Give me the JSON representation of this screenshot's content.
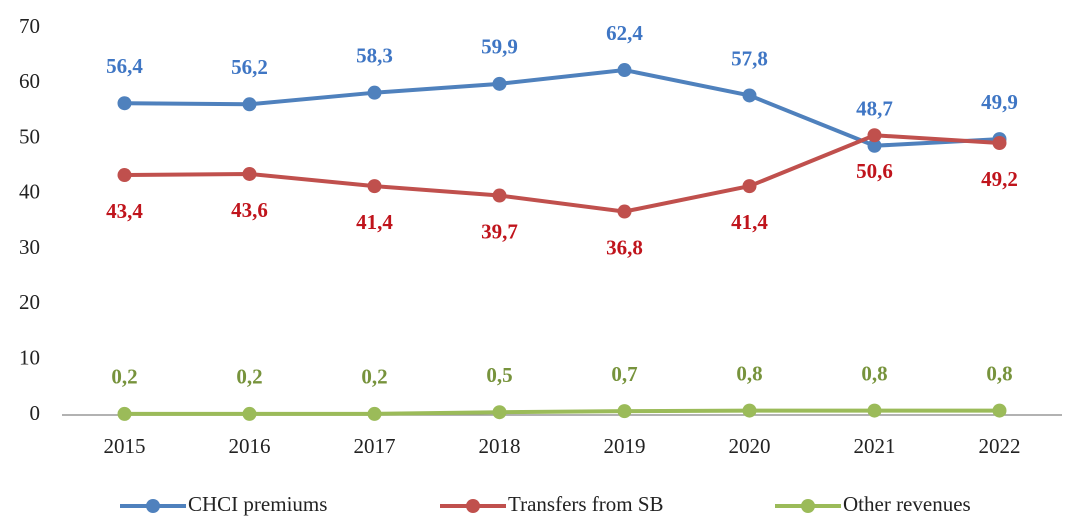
{
  "chart_data": {
    "type": "line",
    "categories": [
      "2015",
      "2016",
      "2017",
      "2018",
      "2019",
      "2020",
      "2021",
      "2022"
    ],
    "series": [
      {
        "name": "CHCI premiums",
        "color": "#4f81bd",
        "label_color": "#3f76c4",
        "values": [
          56.4,
          56.2,
          58.3,
          59.9,
          62.4,
          57.8,
          48.7,
          49.9
        ],
        "value_labels": [
          "56,4",
          "56,2",
          "58,3",
          "59,9",
          "62,4",
          "57,8",
          "48,7",
          "49,9"
        ]
      },
      {
        "name": "Transfers from SB",
        "color": "#c0504d",
        "label_color": "#c0141c",
        "values": [
          43.4,
          43.6,
          41.4,
          39.7,
          36.8,
          41.4,
          50.6,
          49.2
        ],
        "value_labels": [
          "43,4",
          "43,6",
          "41,4",
          "39,7",
          "36,8",
          "41,4",
          "50,6",
          "49,2"
        ]
      },
      {
        "name": "Other revenues",
        "color": "#9bbb59",
        "label_color": "#77933c",
        "values": [
          0.2,
          0.2,
          0.2,
          0.5,
          0.7,
          0.8,
          0.8,
          0.8
        ],
        "value_labels": [
          "0,2",
          "0,2",
          "0,2",
          "0,5",
          "0,7",
          "0,8",
          "0,8",
          "0,8"
        ]
      }
    ],
    "ylim": [
      0,
      70
    ],
    "yticks": [
      0,
      10,
      20,
      30,
      40,
      50,
      60,
      70
    ],
    "grid": false,
    "legend": "bottom"
  }
}
